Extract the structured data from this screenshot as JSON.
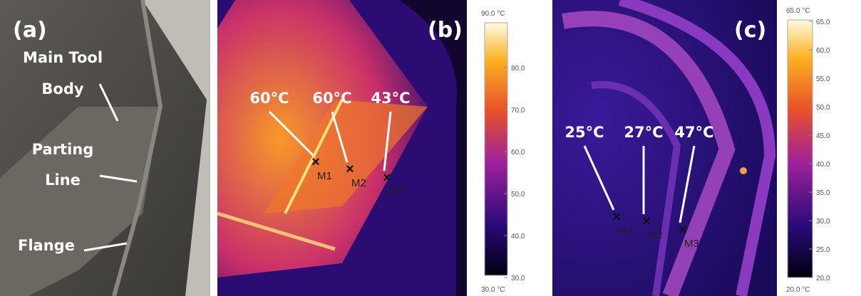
{
  "panel_a": {
    "label": "(a)",
    "annotations": [
      "Main Tool",
      "Body",
      "Parting",
      "Line",
      "Flange"
    ]
  },
  "panel_b": {
    "label": "(b)",
    "temps": [
      "60°C",
      "60°C",
      "43°C"
    ],
    "markers": [
      "M1",
      "M2",
      "M3"
    ],
    "colorbar": {
      "top": "90.0 °C",
      "bottom": "30.0 °C",
      "ticks": [
        "80.0",
        "70.0",
        "60.0",
        "50.0",
        "40.0",
        "30.0"
      ]
    }
  },
  "panel_c": {
    "label": "(c)",
    "temps": [
      "25°C",
      "27°C",
      "47°C"
    ],
    "markers": [
      "M1",
      "M2",
      "M3"
    ],
    "colorbar": {
      "top": "65.0 °C",
      "bottom": "20.0 °C",
      "ticks": [
        "65.0",
        "60.0",
        "55.0",
        "50.0",
        "45.0",
        "40.0",
        "35.0",
        "30.0",
        "25.0",
        "20.0"
      ]
    }
  }
}
